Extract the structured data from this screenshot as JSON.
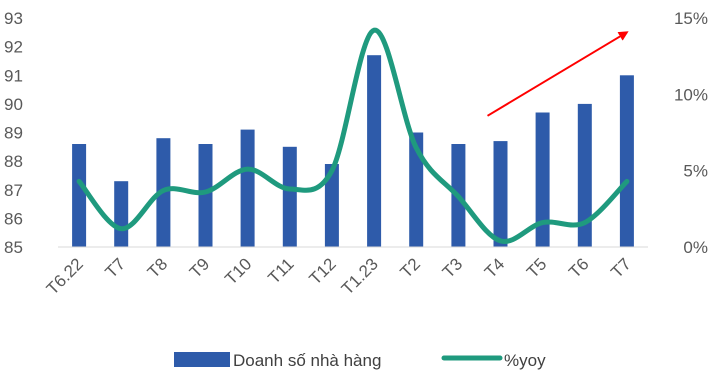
{
  "chart_data": {
    "type": "bar",
    "categories": [
      "T6.22",
      "T7",
      "T8",
      "T9",
      "T10",
      "T11",
      "T12",
      "T1.23",
      "T2",
      "T3",
      "T4",
      "T5",
      "T6",
      "T7"
    ],
    "series": [
      {
        "name": "Doanh số nhà hàng",
        "type": "bar",
        "axis": "left",
        "color": "#2E5BAA",
        "values": [
          88.6,
          87.3,
          88.8,
          88.6,
          89.1,
          88.5,
          87.9,
          91.7,
          89.0,
          88.6,
          88.7,
          89.7,
          90.0,
          91.0
        ]
      },
      {
        "name": "%yoy",
        "type": "line",
        "axis": "right",
        "color": "#1F9A7E",
        "values": [
          4.3,
          1.2,
          3.7,
          3.6,
          5.1,
          3.8,
          5.0,
          14.2,
          6.5,
          3.3,
          0.4,
          1.6,
          1.6,
          4.3
        ]
      }
    ],
    "y_left": {
      "min": 85,
      "max": 93,
      "ticks": [
        "85",
        "86",
        "87",
        "88",
        "89",
        "90",
        "91",
        "92",
        "93"
      ]
    },
    "y_right": {
      "min": 0,
      "max": 15,
      "ticks": [
        "0%",
        "5%",
        "10%",
        "15%"
      ],
      "tick_values": [
        0,
        5,
        10,
        15
      ]
    },
    "annotation": {
      "type": "arrow",
      "color": "#FF0000",
      "from": {
        "x": "T4",
        "y_left": 89.2
      },
      "to": {
        "x": "T7",
        "y_left": 92.5
      }
    },
    "legend": {
      "placement": "bottom",
      "entries": [
        "Doanh số nhà hàng",
        "%yoy"
      ]
    },
    "grid": false
  }
}
